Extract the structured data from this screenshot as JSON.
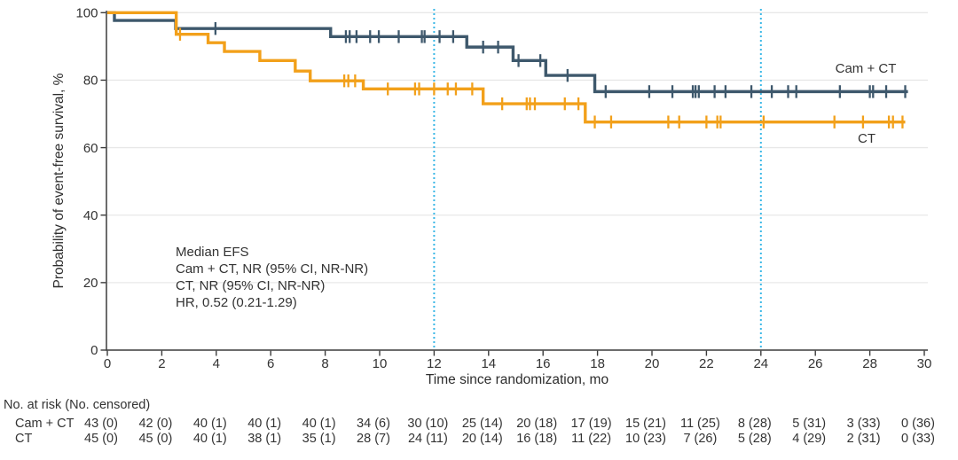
{
  "chart_data": {
    "type": "line",
    "variant": "kaplan_meier_step",
    "title": "",
    "xlabel": "Time since randomization, mo",
    "ylabel": "Probability of event-free survival, %",
    "xlim": [
      0,
      30
    ],
    "ylim": [
      0,
      100
    ],
    "xticks": [
      0,
      2,
      4,
      6,
      8,
      10,
      12,
      14,
      16,
      18,
      20,
      22,
      24,
      26,
      28,
      30
    ],
    "yticks": [
      0,
      20,
      40,
      60,
      80,
      100
    ],
    "grid": {
      "horizontal_at": [
        20,
        40,
        60,
        80,
        100
      ],
      "color": "#e8e8e8"
    },
    "reference_lines": {
      "x_values": [
        12,
        24
      ],
      "style": "dotted",
      "color": "#3ab7e6"
    },
    "axis_color": "#3b3b3b",
    "annotation": {
      "lines": [
        "Median EFS",
        "Cam + CT, NR (95% CI, NR-NR)",
        "CT, NR (95% CI, NR-NR)",
        "HR, 0.52 (0.21-1.29)"
      ]
    },
    "series": [
      {
        "name": "Cam + CT",
        "color": "#3E586C",
        "steps": [
          [
            0,
            100
          ],
          [
            0.26,
            97.7
          ],
          [
            2.51,
            95.3
          ],
          [
            8.2,
            92.9
          ],
          [
            13.2,
            89.8
          ],
          [
            14.9,
            85.8
          ],
          [
            16.1,
            81.4
          ],
          [
            17.9,
            76.6
          ]
        ],
        "end_time": 29.4,
        "censor_times": [
          3.97,
          8.76,
          8.9,
          9.15,
          9.65,
          9.97,
          10.7,
          11.55,
          11.65,
          12.2,
          12.7,
          13.8,
          14.35,
          15.1,
          15.9,
          16.9,
          18.3,
          19.9,
          20.75,
          21.5,
          21.6,
          21.72,
          22.3,
          22.7,
          23.65,
          24.4,
          25.0,
          25.3,
          26.9,
          28.0,
          28.12,
          28.6,
          29.3
        ]
      },
      {
        "name": "CT",
        "color": "#F2A01A",
        "steps": [
          [
            0,
            100
          ],
          [
            2.53,
            93.6
          ],
          [
            3.7,
            91.1
          ],
          [
            4.3,
            88.5
          ],
          [
            5.6,
            85.8
          ],
          [
            6.9,
            82.7
          ],
          [
            7.45,
            79.8
          ],
          [
            9.4,
            77.4
          ],
          [
            13.8,
            73.0
          ],
          [
            17.55,
            67.6
          ]
        ],
        "end_time": 29.3,
        "censor_times": [
          2.67,
          8.7,
          8.85,
          9.1,
          10.3,
          11.3,
          11.45,
          12.0,
          12.5,
          12.8,
          13.4,
          14.5,
          15.4,
          15.52,
          15.7,
          16.8,
          17.3,
          17.9,
          18.5,
          20.6,
          21.0,
          22.0,
          22.4,
          22.52,
          24.1,
          26.7,
          27.75,
          28.7,
          28.85,
          29.2
        ]
      }
    ]
  },
  "risk_table": {
    "header": "No. at risk (No. censored)",
    "times": [
      0,
      2,
      4,
      6,
      8,
      10,
      12,
      14,
      16,
      18,
      20,
      22,
      24,
      26,
      28,
      30
    ],
    "rows": [
      {
        "label": "Cam + CT",
        "values": [
          "43 (0)",
          "42 (0)",
          "40 (1)",
          "40 (1)",
          "40 (1)",
          "34 (6)",
          "30 (10)",
          "25 (14)",
          "20 (18)",
          "17 (19)",
          "15 (21)",
          "11 (25)",
          "8 (28)",
          "5 (31)",
          "3 (33)",
          "0 (36)"
        ]
      },
      {
        "label": "CT",
        "values": [
          "45 (0)",
          "45 (0)",
          "40 (1)",
          "38 (1)",
          "35 (1)",
          "28 (7)",
          "24 (11)",
          "20 (14)",
          "16 (18)",
          "11 (22)",
          "10 (23)",
          "7 (26)",
          "5 (28)",
          "4 (29)",
          "2 (31)",
          "0 (33)"
        ]
      }
    ]
  }
}
